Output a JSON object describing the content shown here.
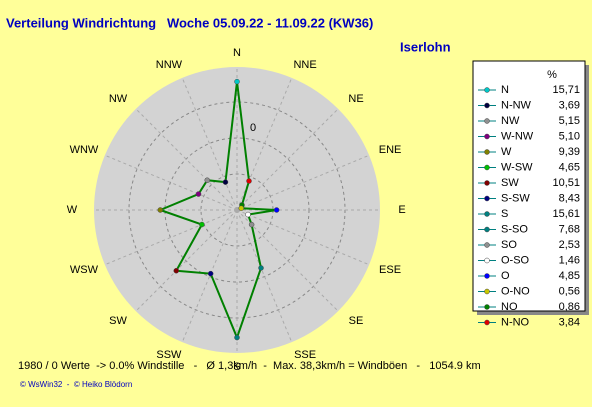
{
  "chart_data": {
    "type": "radar",
    "title": "Verteilung Windrichtung   Woche 05.09.22 - 11.09.22 (KW36)",
    "subtitle": "Iserlohn",
    "categories": [
      "N",
      "NNE",
      "NE",
      "ENE",
      "E",
      "ESE",
      "SE",
      "SSE",
      "S",
      "SSW",
      "SW",
      "WSW",
      "W",
      "WNW",
      "NW",
      "NNW"
    ],
    "values": [
      15.71,
      3.84,
      0.86,
      0.56,
      4.85,
      1.46,
      2.53,
      7.68,
      15.61,
      8.43,
      10.51,
      4.65,
      9.39,
      5.1,
      5.15,
      3.69
    ],
    "value_labels": [
      "15,71",
      "3,84",
      "0,86",
      "0,56",
      "4,85",
      "1,46",
      "2,53",
      "7,68",
      "15,61",
      "8,43",
      "10,51",
      "4,65",
      "9,39",
      "5,10",
      "5,15",
      "3,69"
    ],
    "legend_names": [
      "N",
      "N-NO",
      "NO",
      "O-NO",
      "O",
      "O-SO",
      "SO",
      "S-SO",
      "S",
      "S-SW",
      "SW",
      "W-SW",
      "W",
      "W-NW",
      "NW",
      "N-NW"
    ],
    "marker_colors": [
      "#00c8c8",
      "#e00000",
      "#008000",
      "#c8c800",
      "#0000ff",
      "#ffffff",
      "#909090",
      "#008080",
      "#008080",
      "#000080",
      "#800000",
      "#00c000",
      "#808000",
      "#800080",
      "#909090",
      "#000040"
    ],
    "legend_header": "%",
    "color": "#008000",
    "rlim": [
      0,
      17.5
    ],
    "radial_label": "0",
    "footer": "1980 / 0 Werte  -> 0.0% Windstille   -   Ø 1,3km/h  -  Max. 38,3km/h = Windböen   -   1054.9 km",
    "credit": "© WsWin32  -  © Heiko Blödorn"
  }
}
